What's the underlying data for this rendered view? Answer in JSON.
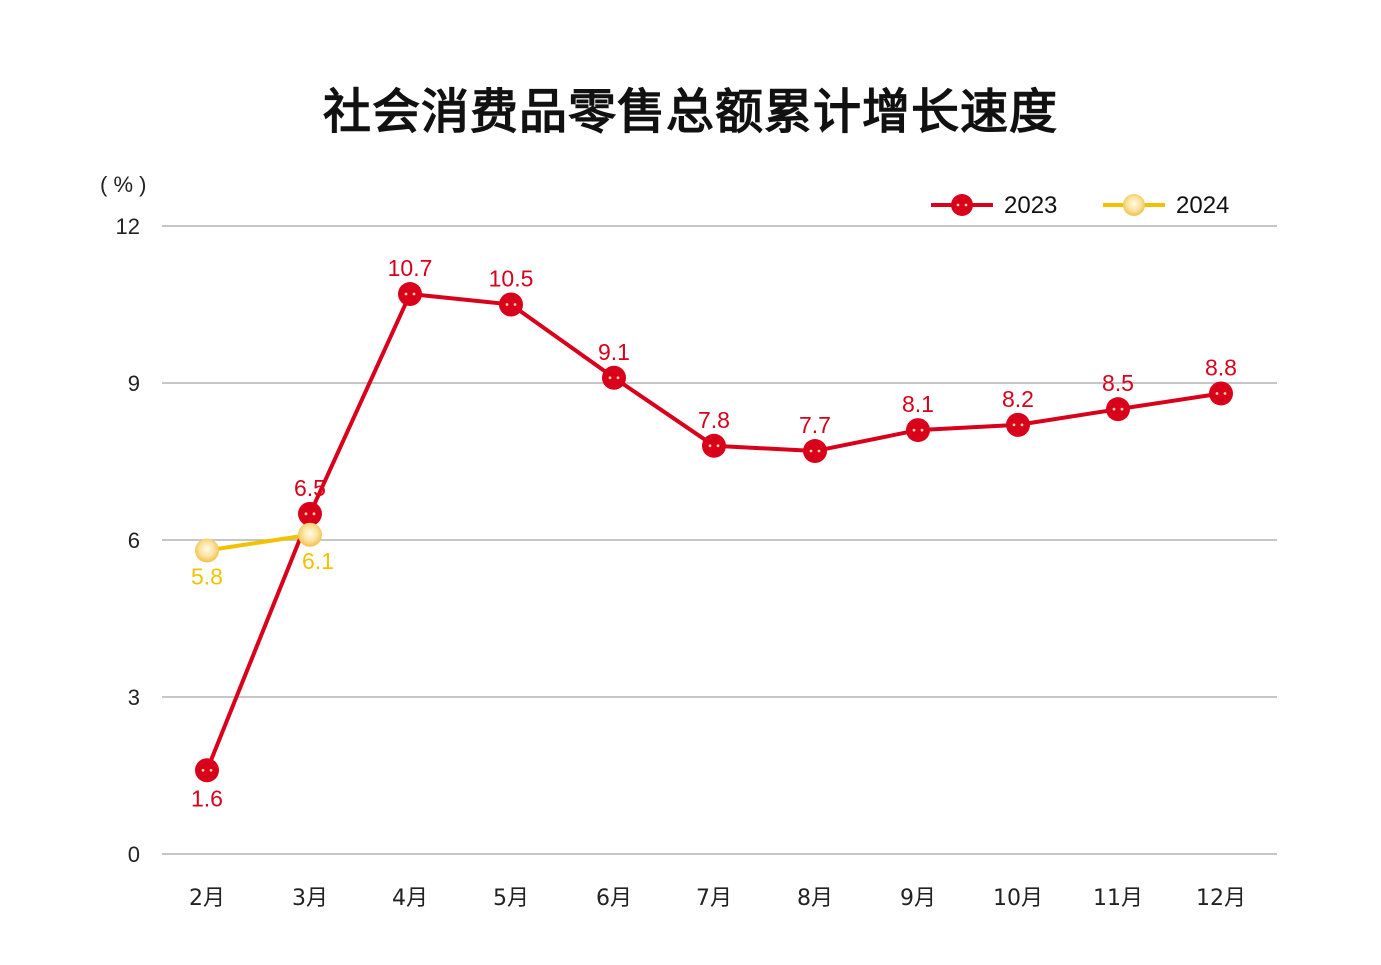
{
  "chart_data": {
    "type": "line",
    "title": "社会消费品零售总额累计增长速度",
    "ylabel": "( % )",
    "xlabel": "",
    "categories": [
      "2月",
      "3月",
      "4月",
      "5月",
      "6月",
      "7月",
      "8月",
      "9月",
      "10月",
      "11月",
      "12月"
    ],
    "series": [
      {
        "name": "2023",
        "color": "#d9001b",
        "values": [
          1.6,
          6.5,
          10.7,
          10.5,
          9.1,
          7.8,
          7.7,
          8.1,
          8.2,
          8.5,
          8.8
        ]
      },
      {
        "name": "2024",
        "color": "#f2c200",
        "values": [
          5.8,
          6.1,
          null,
          null,
          null,
          null,
          null,
          null,
          null,
          null,
          null
        ]
      }
    ],
    "ylim": [
      0,
      12
    ],
    "yticks": [
      0,
      3,
      6,
      9,
      12
    ],
    "grid": true,
    "legend_position": "top-right",
    "data_labels": true
  },
  "legend": {
    "items": [
      {
        "label": "2023"
      },
      {
        "label": "2024"
      }
    ]
  },
  "colors": {
    "red": "#d9001b",
    "gold": "#f2c200",
    "grid": "#b3b3b3"
  }
}
